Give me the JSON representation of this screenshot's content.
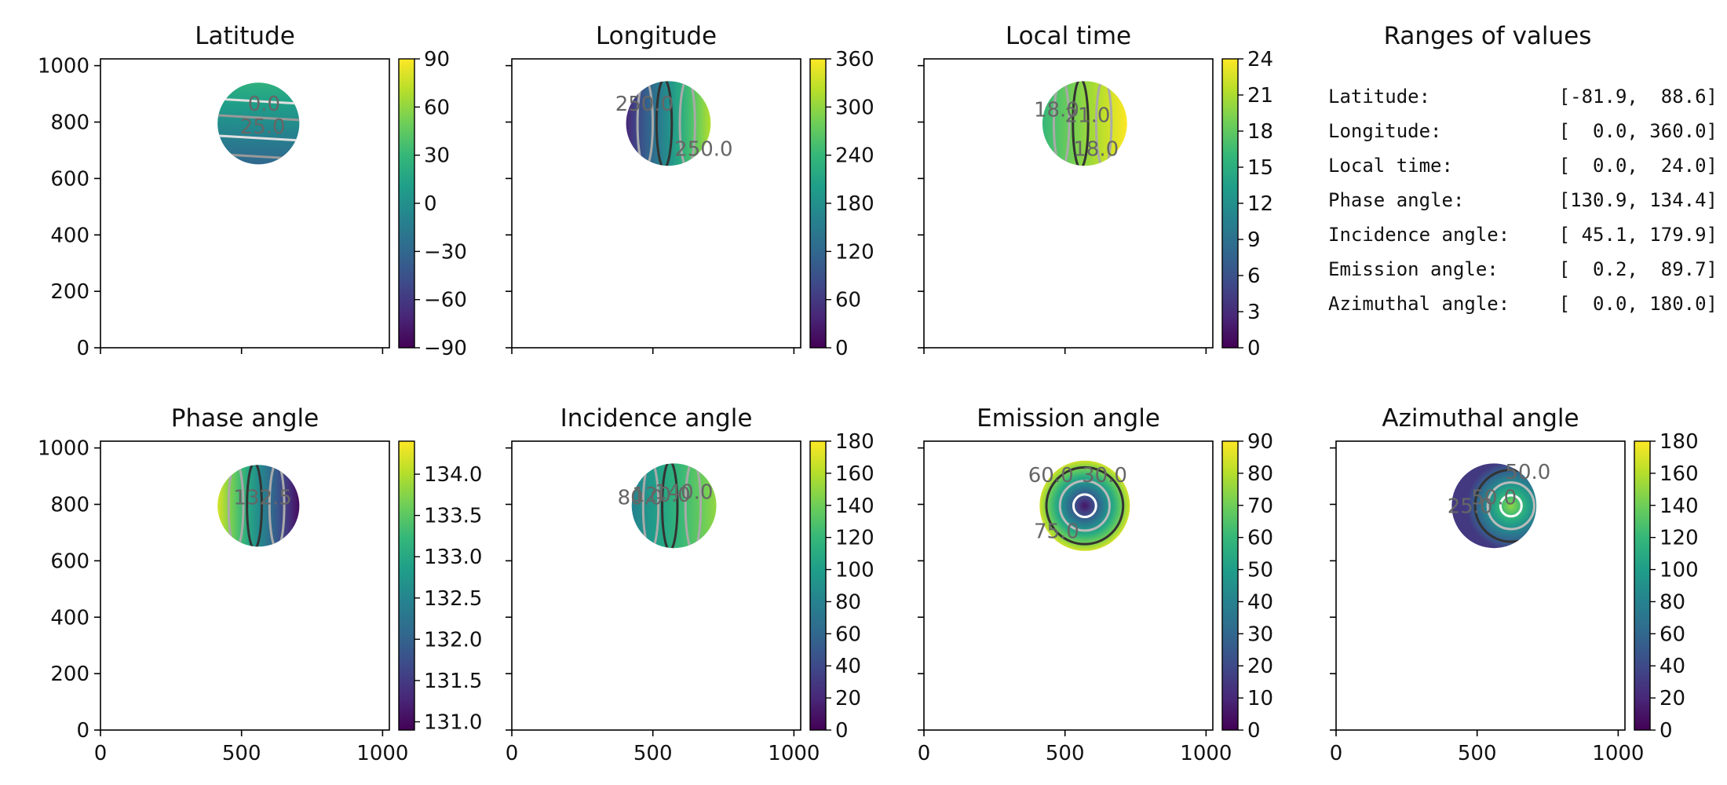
{
  "chart_data": [
    {
      "type": "heatmap",
      "title": "Latitude",
      "cmap": "viridis",
      "xlim": [
        0,
        1024
      ],
      "ylim": [
        0,
        1024
      ],
      "xticks": [
        0,
        500,
        1000
      ],
      "yticks": [
        0,
        200,
        400,
        600,
        800,
        1000
      ],
      "xticklabels": false,
      "yticklabels": true,
      "colorbar": {
        "min": -90,
        "max": 90,
        "ticks": [
          -90,
          -60,
          -30,
          0,
          30,
          60,
          90
        ],
        "ticklabels": [
          "−90",
          "−60",
          "−30",
          "0",
          "30",
          "60",
          "90"
        ]
      },
      "disk": {
        "cx": 560,
        "cy": 795,
        "r": 145
      },
      "fill": {
        "kind": "vertical",
        "vmin": 25,
        "vmax": -30
      },
      "contour_labels": [
        {
          "text": "0.0",
          "x": 580,
          "y": 840
        },
        {
          "text": "25.0",
          "x": 575,
          "y": 760
        }
      ]
    },
    {
      "type": "heatmap",
      "title": "Longitude",
      "cmap": "viridis",
      "xlim": [
        0,
        1024
      ],
      "ylim": [
        0,
        1024
      ],
      "xticks": [
        0,
        500,
        1000
      ],
      "yticks": [
        0,
        200,
        400,
        600,
        800,
        1000
      ],
      "xticklabels": false,
      "yticklabels": false,
      "colorbar": {
        "min": 0,
        "max": 360,
        "ticks": [
          0,
          60,
          120,
          180,
          240,
          300,
          360
        ],
        "ticklabels": [
          "0",
          "60",
          "120",
          "180",
          "240",
          "300",
          "360"
        ]
      },
      "disk": {
        "cx": 555,
        "cy": 795,
        "r": 150
      },
      "fill": {
        "kind": "horizontal",
        "vmin": 40,
        "vmax": 320
      },
      "contour_labels": [
        {
          "text": "250.0",
          "x": 680,
          "y": 680
        },
        {
          "text": "250.0",
          "x": 470,
          "y": 840
        }
      ]
    },
    {
      "type": "heatmap",
      "title": "Local time",
      "cmap": "viridis",
      "xlim": [
        0,
        1024
      ],
      "ylim": [
        0,
        1024
      ],
      "xticks": [
        0,
        500,
        1000
      ],
      "yticks": [
        0,
        200,
        400,
        600,
        800,
        1000
      ],
      "xticklabels": false,
      "yticklabels": false,
      "colorbar": {
        "min": 0,
        "max": 24,
        "ticks": [
          0,
          3,
          6,
          9,
          12,
          15,
          18,
          21,
          24
        ],
        "ticklabels": [
          "0",
          "3",
          "6",
          "9",
          "12",
          "15",
          "18",
          "21",
          "24"
        ]
      },
      "disk": {
        "cx": 570,
        "cy": 795,
        "r": 150
      },
      "fill": {
        "kind": "horizontal",
        "vmin": 16,
        "vmax": 24
      },
      "contour_labels": [
        {
          "text": "18.0",
          "x": 470,
          "y": 820
        },
        {
          "text": "21.0",
          "x": 580,
          "y": 800
        },
        {
          "text": "18.0",
          "x": 610,
          "y": 680
        }
      ]
    },
    {
      "type": "heatmap",
      "title": "Phase angle",
      "cmap": "viridis",
      "xlim": [
        0,
        1024
      ],
      "ylim": [
        0,
        1024
      ],
      "xticks": [
        0,
        500,
        1000
      ],
      "yticks": [
        0,
        200,
        400,
        600,
        800,
        1000
      ],
      "xticklabels": true,
      "yticklabels": true,
      "colorbar": {
        "min": 130.9,
        "max": 134.4,
        "ticks": [
          131.0,
          131.5,
          132.0,
          132.5,
          133.0,
          133.5,
          134.0
        ],
        "ticklabels": [
          "131.0",
          "131.5",
          "132.0",
          "132.5",
          "133.0",
          "133.5",
          "134.0"
        ]
      },
      "disk": {
        "cx": 560,
        "cy": 795,
        "r": 145
      },
      "fill": {
        "kind": "horizontal",
        "vmin": 134.2,
        "vmax": 131.0
      },
      "contour_labels": [
        {
          "text": "132.5",
          "x": 575,
          "y": 800
        }
      ]
    },
    {
      "type": "heatmap",
      "title": "Incidence angle",
      "cmap": "viridis",
      "xlim": [
        0,
        1024
      ],
      "ylim": [
        0,
        1024
      ],
      "xticks": [
        0,
        500,
        1000
      ],
      "yticks": [
        0,
        200,
        400,
        600,
        800,
        1000
      ],
      "xticklabels": true,
      "yticklabels": false,
      "colorbar": {
        "min": 0,
        "max": 180,
        "ticks": [
          0,
          20,
          40,
          60,
          80,
          100,
          120,
          140,
          160,
          180
        ],
        "ticklabels": [
          "0",
          "20",
          "40",
          "60",
          "80",
          "100",
          "120",
          "140",
          "160",
          "180"
        ]
      },
      "disk": {
        "cx": 575,
        "cy": 795,
        "r": 150
      },
      "fill": {
        "kind": "horizontal",
        "vmin": 80,
        "vmax": 150
      },
      "contour_labels": [
        {
          "text": "80.0",
          "x": 455,
          "y": 800
        },
        {
          "text": "120.0",
          "x": 530,
          "y": 810
        },
        {
          "text": "140.0",
          "x": 610,
          "y": 820
        }
      ]
    },
    {
      "type": "heatmap",
      "title": "Emission angle",
      "cmap": "viridis",
      "xlim": [
        0,
        1024
      ],
      "ylim": [
        0,
        1024
      ],
      "xticks": [
        0,
        500,
        1000
      ],
      "yticks": [
        0,
        200,
        400,
        600,
        800,
        1000
      ],
      "xticklabels": true,
      "yticklabels": false,
      "colorbar": {
        "min": 0,
        "max": 90,
        "ticks": [
          0,
          10,
          20,
          30,
          40,
          50,
          60,
          70,
          80,
          90
        ],
        "ticklabels": [
          "0",
          "10",
          "20",
          "30",
          "40",
          "50",
          "60",
          "70",
          "80",
          "90"
        ]
      },
      "disk": {
        "cx": 570,
        "cy": 795,
        "r": 160
      },
      "fill": {
        "kind": "radial",
        "ccx": 570,
        "ccy": 795,
        "vmin": 5,
        "vmax": 88
      },
      "contour_labels": [
        {
          "text": "60.0",
          "x": 450,
          "y": 880
        },
        {
          "text": "30.0",
          "x": 640,
          "y": 880
        },
        {
          "text": "75.0",
          "x": 470,
          "y": 680
        }
      ]
    },
    {
      "type": "heatmap",
      "title": "Azimuthal angle",
      "cmap": "viridis",
      "xlim": [
        0,
        1024
      ],
      "ylim": [
        0,
        1024
      ],
      "xticks": [
        0,
        500,
        1000
      ],
      "yticks": [
        0,
        200,
        400,
        600,
        800,
        1000
      ],
      "xticklabels": true,
      "yticklabels": false,
      "colorbar": {
        "min": 0,
        "max": 180,
        "ticks": [
          0,
          20,
          40,
          60,
          80,
          100,
          120,
          140,
          160,
          180
        ],
        "ticklabels": [
          "0",
          "20",
          "40",
          "60",
          "80",
          "100",
          "120",
          "140",
          "160",
          "180"
        ]
      },
      "disk": {
        "cx": 560,
        "cy": 795,
        "r": 150
      },
      "fill": {
        "kind": "radial",
        "ccx": 620,
        "ccy": 795,
        "vmin": 150,
        "vmax": 30
      },
      "contour_labels": [
        {
          "text": "25.0",
          "x": 475,
          "y": 770
        },
        {
          "text": "50.0",
          "x": 560,
          "y": 800
        },
        {
          "text": "50.0",
          "x": 680,
          "y": 890
        }
      ]
    }
  ],
  "ranges_panel": {
    "title": "Ranges of values",
    "rows": [
      {
        "label": "Latitude:",
        "value": "[-81.9,  88.6]"
      },
      {
        "label": "Longitude:",
        "value": "[  0.0, 360.0]"
      },
      {
        "label": "Local time:",
        "value": "[  0.0,  24.0]"
      },
      {
        "label": "Phase angle:",
        "value": "[130.9, 134.4]"
      },
      {
        "label": "Incidence angle:",
        "value": "[ 45.1, 179.9]"
      },
      {
        "label": "Emission angle:",
        "value": "[  0.2,  89.7]"
      },
      {
        "label": "Azimuthal angle:",
        "value": "[  0.0, 180.0]"
      }
    ]
  }
}
